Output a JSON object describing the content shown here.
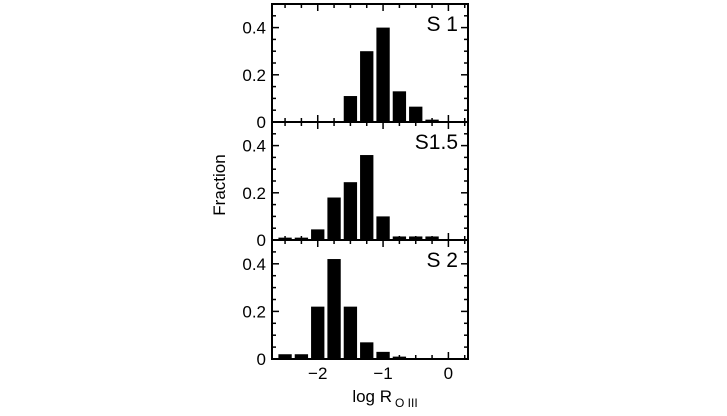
{
  "chart_data": {
    "type": "bar",
    "xlabel": "log R",
    "xlabel_subscript": "O III",
    "ylabel": "Fraction",
    "xlim": [
      -2.7,
      0.3
    ],
    "ylim": [
      0,
      0.5
    ],
    "x_ticks": [
      -2,
      -1,
      0
    ],
    "x_tick_labels": [
      "−2",
      "−1",
      "0"
    ],
    "y_ticks": [
      0,
      0.2,
      0.4
    ],
    "y_tick_labels": [
      "0",
      "0.2",
      "0.4"
    ],
    "bin_width": 0.25,
    "bin_centers": [
      -2.5,
      -2.25,
      -2.0,
      -1.75,
      -1.5,
      -1.25,
      -1.0,
      -0.75,
      -0.5,
      -0.25,
      0.0,
      0.25
    ],
    "panels": [
      {
        "label": "S 1",
        "values": [
          0,
          0,
          0,
          0,
          0.11,
          0.3,
          0.4,
          0.13,
          0.065,
          0.01,
          0,
          0
        ]
      },
      {
        "label": "S1.5",
        "values": [
          0.01,
          0.01,
          0.045,
          0.18,
          0.245,
          0.36,
          0.1,
          0.015,
          0.015,
          0.015,
          0,
          0
        ]
      },
      {
        "label": "S 2",
        "values": [
          0.02,
          0.02,
          0.22,
          0.42,
          0.22,
          0.07,
          0.03,
          0.01,
          0,
          0,
          0,
          0
        ]
      }
    ]
  }
}
